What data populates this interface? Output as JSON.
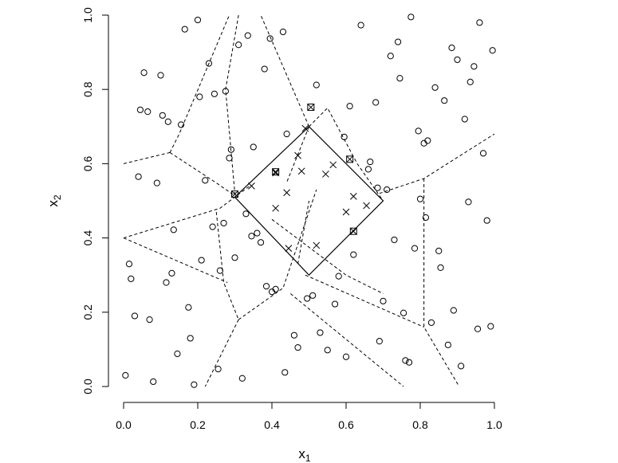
{
  "chart_data": {
    "type": "scatter",
    "xlabel": "x",
    "xlabel_subscript": "1",
    "ylabel": "x",
    "ylabel_subscript": "2",
    "xlim": [
      0,
      1
    ],
    "ylim": [
      0,
      1
    ],
    "xticks": [
      0.0,
      0.2,
      0.4,
      0.6,
      0.8,
      1.0
    ],
    "xtick_labels": [
      "0.0",
      "0.2",
      "0.4",
      "0.6",
      "0.8",
      "1.0"
    ],
    "yticks": [
      0.0,
      0.2,
      0.4,
      0.6,
      0.8,
      1.0
    ],
    "ytick_labels": [
      "0.0",
      "0.2",
      "0.4",
      "0.6",
      "0.8",
      "1.0"
    ],
    "grid": false,
    "series": [
      {
        "marker": "circle",
        "points": [
          [
            0.005,
            0.03
          ],
          [
            0.015,
            0.33
          ],
          [
            0.02,
            0.29
          ],
          [
            0.03,
            0.19
          ],
          [
            0.04,
            0.565
          ],
          [
            0.045,
            0.745
          ],
          [
            0.055,
            0.845
          ],
          [
            0.065,
            0.74
          ],
          [
            0.07,
            0.18
          ],
          [
            0.08,
            0.013
          ],
          [
            0.09,
            0.548
          ],
          [
            0.1,
            0.838
          ],
          [
            0.105,
            0.73
          ],
          [
            0.115,
            0.28
          ],
          [
            0.12,
            0.713
          ],
          [
            0.13,
            0.305
          ],
          [
            0.135,
            0.422
          ],
          [
            0.145,
            0.088
          ],
          [
            0.155,
            0.705
          ],
          [
            0.165,
            0.962
          ],
          [
            0.175,
            0.213
          ],
          [
            0.18,
            0.13
          ],
          [
            0.19,
            0.005
          ],
          [
            0.2,
            0.987
          ],
          [
            0.205,
            0.78
          ],
          [
            0.21,
            0.34
          ],
          [
            0.22,
            0.555
          ],
          [
            0.23,
            0.87
          ],
          [
            0.24,
            0.43
          ],
          [
            0.245,
            0.788
          ],
          [
            0.255,
            0.047
          ],
          [
            0.26,
            0.312
          ],
          [
            0.27,
            0.44
          ],
          [
            0.275,
            0.795
          ],
          [
            0.285,
            0.615
          ],
          [
            0.29,
            0.638
          ],
          [
            0.3,
            0.347
          ],
          [
            0.31,
            0.92
          ],
          [
            0.32,
            0.022
          ],
          [
            0.33,
            0.465
          ],
          [
            0.335,
            0.945
          ],
          [
            0.345,
            0.405
          ],
          [
            0.35,
            0.645
          ],
          [
            0.36,
            0.413
          ],
          [
            0.37,
            0.388
          ],
          [
            0.38,
            0.855
          ],
          [
            0.385,
            0.27
          ],
          [
            0.395,
            0.937
          ],
          [
            0.4,
            0.255
          ],
          [
            0.41,
            0.262
          ],
          [
            0.43,
            0.955
          ],
          [
            0.435,
            0.038
          ],
          [
            0.44,
            0.68
          ],
          [
            0.46,
            0.138
          ],
          [
            0.47,
            0.105
          ],
          [
            0.495,
            0.237
          ],
          [
            0.51,
            0.245
          ],
          [
            0.52,
            0.812
          ],
          [
            0.53,
            0.145
          ],
          [
            0.55,
            0.098
          ],
          [
            0.57,
            0.222
          ],
          [
            0.58,
            0.297
          ],
          [
            0.595,
            0.672
          ],
          [
            0.6,
            0.08
          ],
          [
            0.61,
            0.755
          ],
          [
            0.62,
            0.355
          ],
          [
            0.64,
            0.973
          ],
          [
            0.66,
            0.585
          ],
          [
            0.665,
            0.605
          ],
          [
            0.68,
            0.765
          ],
          [
            0.685,
            0.535
          ],
          [
            0.69,
            0.122
          ],
          [
            0.7,
            0.23
          ],
          [
            0.71,
            0.53
          ],
          [
            0.72,
            0.89
          ],
          [
            0.73,
            0.395
          ],
          [
            0.74,
            0.928
          ],
          [
            0.745,
            0.83
          ],
          [
            0.755,
            0.198
          ],
          [
            0.76,
            0.07
          ],
          [
            0.77,
            0.065
          ],
          [
            0.775,
            0.995
          ],
          [
            0.785,
            0.372
          ],
          [
            0.795,
            0.688
          ],
          [
            0.8,
            0.505
          ],
          [
            0.81,
            0.655
          ],
          [
            0.815,
            0.455
          ],
          [
            0.82,
            0.662
          ],
          [
            0.83,
            0.172
          ],
          [
            0.84,
            0.805
          ],
          [
            0.85,
            0.365
          ],
          [
            0.855,
            0.32
          ],
          [
            0.865,
            0.77
          ],
          [
            0.875,
            0.112
          ],
          [
            0.885,
            0.912
          ],
          [
            0.89,
            0.205
          ],
          [
            0.9,
            0.88
          ],
          [
            0.91,
            0.055
          ],
          [
            0.92,
            0.72
          ],
          [
            0.93,
            0.497
          ],
          [
            0.935,
            0.82
          ],
          [
            0.945,
            0.862
          ],
          [
            0.955,
            0.155
          ],
          [
            0.96,
            0.98
          ],
          [
            0.97,
            0.628
          ],
          [
            0.98,
            0.447
          ],
          [
            0.99,
            0.162
          ],
          [
            0.995,
            0.905
          ]
        ]
      },
      {
        "marker": "cross",
        "points": [
          [
            0.345,
            0.54
          ],
          [
            0.41,
            0.48
          ],
          [
            0.44,
            0.522
          ],
          [
            0.47,
            0.622
          ],
          [
            0.48,
            0.58
          ],
          [
            0.49,
            0.695
          ],
          [
            0.545,
            0.572
          ],
          [
            0.565,
            0.597
          ],
          [
            0.6,
            0.47
          ],
          [
            0.62,
            0.512
          ],
          [
            0.655,
            0.487
          ],
          [
            0.52,
            0.38
          ],
          [
            0.445,
            0.372
          ],
          [
            0.41,
            0.575
          ]
        ]
      },
      {
        "marker": "boxed-cross",
        "points": [
          [
            0.3,
            0.518
          ],
          [
            0.41,
            0.578
          ],
          [
            0.505,
            0.752
          ],
          [
            0.61,
            0.612
          ],
          [
            0.62,
            0.418
          ]
        ]
      }
    ],
    "annotations": {
      "rectangle": [
        [
          0.3,
          0.51
        ],
        [
          0.5,
          0.7
        ],
        [
          0.7,
          0.5
        ],
        [
          0.5,
          0.3
        ]
      ],
      "dashed_segments": [
        [
          [
            0.0,
            0.6
          ],
          [
            0.125,
            0.63
          ]
        ],
        [
          [
            0.125,
            0.63
          ],
          [
            0.15,
            0.68
          ],
          [
            0.285,
            1.0
          ]
        ],
        [
          [
            0.125,
            0.63
          ],
          [
            0.255,
            0.545
          ],
          [
            0.295,
            0.517
          ]
        ],
        [
          [
            0.31,
            1.0
          ],
          [
            0.275,
            0.8
          ],
          [
            0.3,
            0.52
          ]
        ],
        [
          [
            0.0,
            0.4
          ],
          [
            0.26,
            0.48
          ],
          [
            0.34,
            0.54
          ]
        ],
        [
          [
            0.0,
            0.4
          ],
          [
            0.28,
            0.28
          ]
        ],
        [
          [
            0.25,
            0.47
          ],
          [
            0.27,
            0.28
          ],
          [
            0.31,
            0.18
          ]
        ],
        [
          [
            0.31,
            0.18
          ],
          [
            0.43,
            0.265
          ],
          [
            0.52,
            0.53
          ]
        ],
        [
          [
            0.31,
            0.18
          ],
          [
            0.22,
            0.0
          ]
        ],
        [
          [
            0.5,
            0.7
          ],
          [
            0.37,
            1.0
          ]
        ],
        [
          [
            0.5,
            0.7
          ],
          [
            0.55,
            0.75
          ],
          [
            0.63,
            0.6
          ],
          [
            0.7,
            0.5
          ]
        ],
        [
          [
            0.5,
            0.7
          ],
          [
            0.44,
            0.55
          ]
        ],
        [
          [
            0.69,
            0.52
          ],
          [
            0.81,
            0.56
          ],
          [
            1.0,
            0.68
          ]
        ],
        [
          [
            0.81,
            0.56
          ],
          [
            0.81,
            0.16
          ],
          [
            0.905,
            0.0
          ]
        ],
        [
          [
            0.49,
            0.3
          ],
          [
            0.81,
            0.16
          ]
        ],
        [
          [
            0.45,
            0.25
          ],
          [
            0.755,
            0.0
          ]
        ],
        [
          [
            0.4,
            0.45
          ],
          [
            0.6,
            0.3
          ],
          [
            0.7,
            0.25
          ]
        ],
        [
          [
            0.47,
            0.33
          ],
          [
            0.5,
            0.5
          ]
        ]
      ]
    }
  }
}
